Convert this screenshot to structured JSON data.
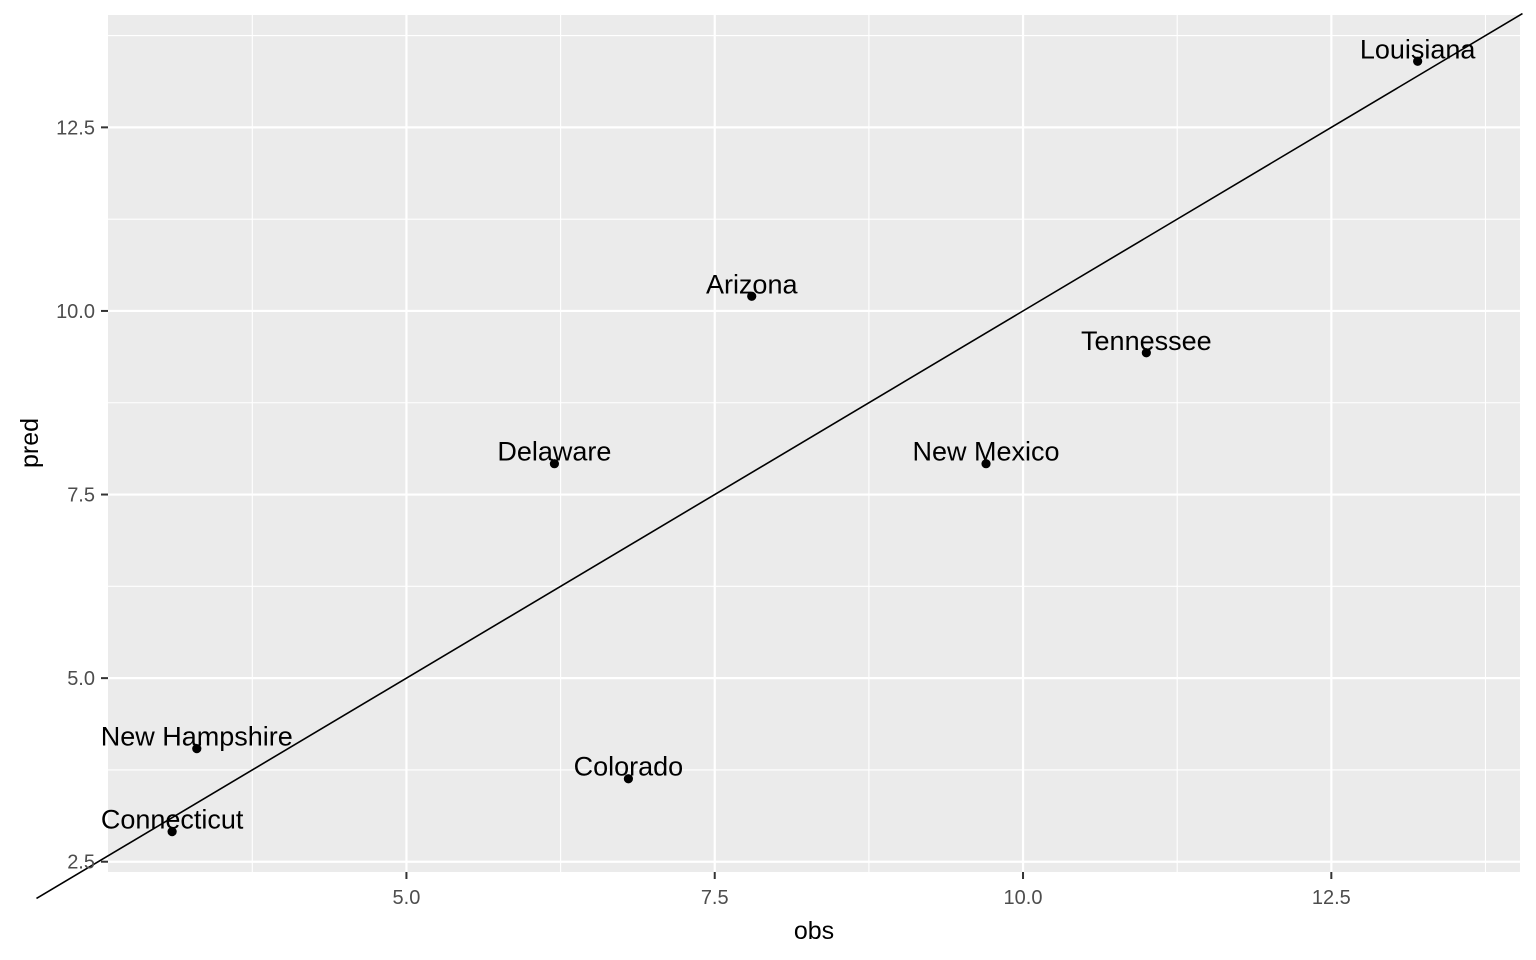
{
  "chart_data": {
    "type": "scatter",
    "title": "",
    "xlabel": "obs",
    "ylabel": "pred",
    "xlim": [
      2.58,
      14.03
    ],
    "ylim": [
      2.36,
      14.03
    ],
    "x_major_ticks": [
      5.0,
      7.5,
      10.0,
      12.5
    ],
    "x_tick_labels": [
      "5.0",
      "7.5",
      "10.0",
      "12.5"
    ],
    "y_major_ticks": [
      2.5,
      5.0,
      7.5,
      10.0,
      12.5
    ],
    "y_tick_labels": [
      "2.5",
      "5.0",
      "7.5",
      "10.0",
      "12.5"
    ],
    "x_minor_ticks": [
      3.75,
      6.25,
      8.75,
      11.25,
      13.75
    ],
    "y_minor_ticks": [
      3.75,
      6.25,
      8.75,
      11.25,
      13.75
    ],
    "grid": true,
    "reference_line": {
      "slope": 1,
      "intercept": 0
    },
    "points": [
      {
        "label": "Louisiana",
        "x": 13.2,
        "y": 13.4
      },
      {
        "label": "Arizona",
        "x": 7.8,
        "y": 10.2
      },
      {
        "label": "Tennessee",
        "x": 11.0,
        "y": 9.43
      },
      {
        "label": "Delaware",
        "x": 6.2,
        "y": 7.92
      },
      {
        "label": "New Mexico",
        "x": 9.7,
        "y": 7.92
      },
      {
        "label": "New Hampshire",
        "x": 3.3,
        "y": 4.04
      },
      {
        "label": "Colorado",
        "x": 6.8,
        "y": 3.63
      },
      {
        "label": "Connecticut",
        "x": 3.1,
        "y": 2.91
      }
    ]
  }
}
